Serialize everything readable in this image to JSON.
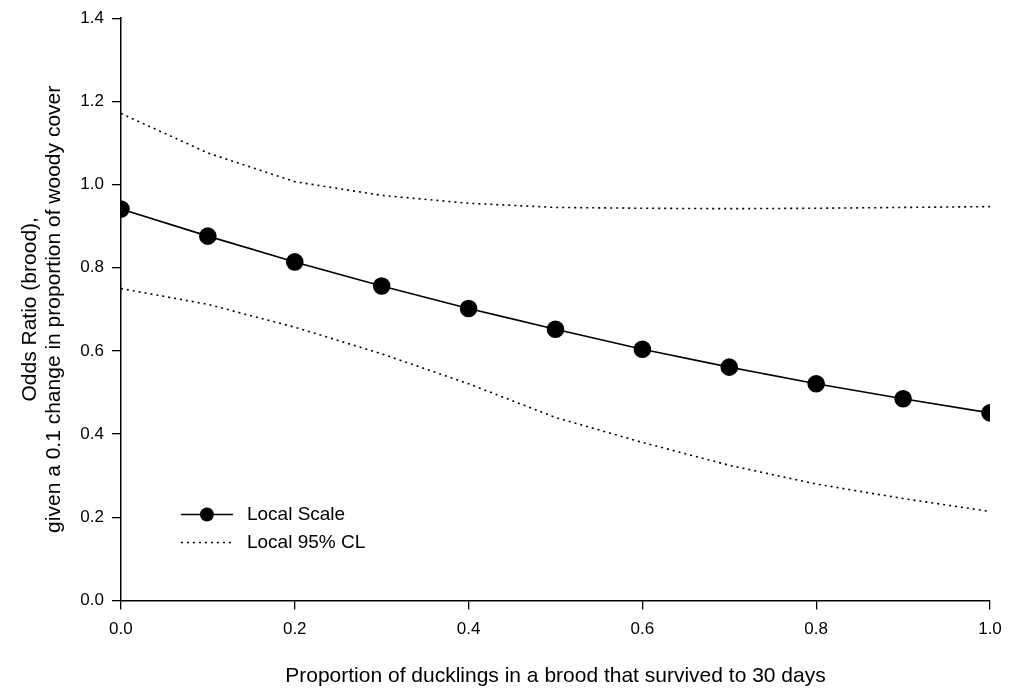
{
  "chart_data": {
    "type": "line",
    "xlabel": "Proportion of ducklings in a brood that survived to 30 days",
    "ylabel": "Odds Ratio (brood),\ngiven a 0.1 change in proportion of woody cover",
    "x": [
      0,
      0.1,
      0.2,
      0.3,
      0.4,
      0.5,
      0.6,
      0.7,
      0.8,
      0.9,
      1.0
    ],
    "series": [
      {
        "name": "Local Scale",
        "color": "#000000",
        "marker": "circle",
        "line_style": "solid",
        "values": [
          0.941,
          0.876,
          0.814,
          0.756,
          0.702,
          0.652,
          0.604,
          0.561,
          0.521,
          0.485,
          0.451
        ]
      },
      {
        "name": "Local 95% CL",
        "color": "#000000",
        "marker": "none",
        "line_style": "dotted",
        "values": [
          1.171,
          1.076,
          1.007,
          0.974,
          0.955,
          0.945,
          0.943,
          0.942,
          0.943,
          0.945,
          0.947
        ]
      },
      {
        "color": "#000000",
        "marker": "none",
        "line_style": "dotted",
        "values": [
          0.75,
          0.712,
          0.657,
          0.593,
          0.521,
          0.44,
          0.38,
          0.325,
          0.28,
          0.245,
          0.214
        ]
      }
    ],
    "xlim": [
      0,
      1.0
    ],
    "xticks": [
      {
        "value": 0,
        "label": "0.0"
      },
      {
        "value": 0.2,
        "label": "0.2"
      },
      {
        "value": 0.4,
        "label": "0.4"
      },
      {
        "value": 0.6,
        "label": "0.6"
      },
      {
        "value": 0.8,
        "label": "0.8"
      },
      {
        "value": 1.0,
        "label": "1.0"
      }
    ],
    "ylim": [
      0,
      1.4
    ],
    "yticks": [
      {
        "value": 0,
        "label": "0.0"
      },
      {
        "value": 0.2,
        "label": "0.2"
      },
      {
        "value": 0.4,
        "label": "0.4"
      },
      {
        "value": 0.6,
        "label": "0.6"
      },
      {
        "value": 0.8,
        "label": "0.8"
      },
      {
        "value": 1.0,
        "label": "1.0"
      },
      {
        "value": 1.2,
        "label": "1.2"
      },
      {
        "value": 1.4,
        "label": "1.4"
      }
    ],
    "grid": false,
    "legend": "bottom left"
  }
}
